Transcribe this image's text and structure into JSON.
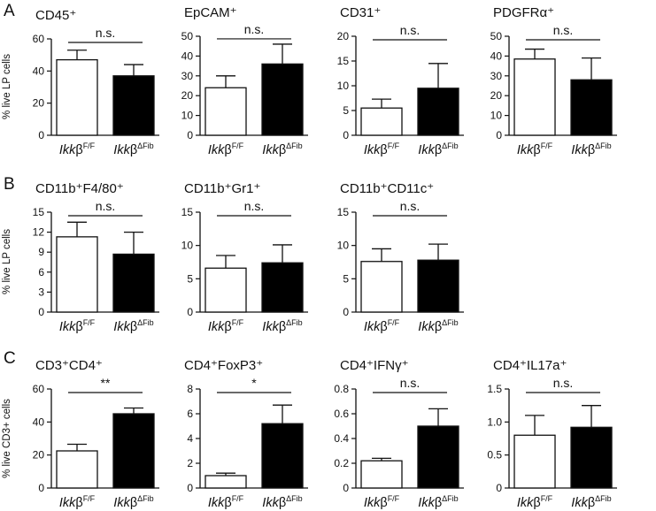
{
  "panels": [
    {
      "letter": "A",
      "ylabel": "% live LP cells"
    },
    {
      "letter": "B",
      "ylabel": "% live LP cells"
    },
    {
      "letter": "C",
      "ylabel": "% live CD3+ cells"
    }
  ],
  "colors": {
    "control_fill": "#ffffff",
    "knockout_fill": "#000000",
    "axis": "#111111"
  },
  "chart_data": [
    {
      "type": "bar",
      "panel": "A",
      "title": "CD45⁺",
      "categories": [
        "Ikkβ F/F",
        "Ikkβ ΔFib"
      ],
      "category_labels": [
        {
          "base": "Ikk",
          "greek": "β",
          "sup": "F/F"
        },
        {
          "base": "Ikk",
          "greek": "β",
          "sup": "ΔFib"
        }
      ],
      "values": [
        47,
        37
      ],
      "errors": [
        6,
        7
      ],
      "ylim": [
        0,
        60
      ],
      "yticks": [
        0,
        20,
        40,
        60
      ],
      "ylabel": "% live LP cells",
      "significance": "n.s."
    },
    {
      "type": "bar",
      "panel": "A",
      "title": "EpCAM⁺",
      "categories": [
        "Ikkβ F/F",
        "Ikkβ ΔFib"
      ],
      "category_labels": [
        {
          "base": "Ikk",
          "greek": "β",
          "sup": "F/F"
        },
        {
          "base": "Ikk",
          "greek": "β",
          "sup": "ΔFib"
        }
      ],
      "values": [
        24,
        36
      ],
      "errors": [
        6,
        10
      ],
      "ylim": [
        0,
        50
      ],
      "yticks": [
        0,
        10,
        20,
        30,
        40,
        50
      ],
      "ylabel": "",
      "significance": "n.s."
    },
    {
      "type": "bar",
      "panel": "A",
      "title": "CD31⁺",
      "categories": [
        "Ikkβ F/F",
        "Ikkβ ΔFib"
      ],
      "category_labels": [
        {
          "base": "Ikk",
          "greek": "β",
          "sup": "F/F"
        },
        {
          "base": "Ikk",
          "greek": "β",
          "sup": "ΔFib"
        }
      ],
      "values": [
        5.5,
        9.5
      ],
      "errors": [
        1.8,
        5
      ],
      "ylim": [
        0,
        20
      ],
      "yticks": [
        0,
        5,
        10,
        15,
        20
      ],
      "ylabel": "",
      "significance": "n.s."
    },
    {
      "type": "bar",
      "panel": "A",
      "title": "PDGFRα⁺",
      "categories": [
        "Ikkβ F/F",
        "Ikkβ ΔFib"
      ],
      "category_labels": [
        {
          "base": "Ikk",
          "greek": "β",
          "sup": "F/F"
        },
        {
          "base": "Ikk",
          "greek": "β",
          "sup": "ΔFib"
        }
      ],
      "values": [
        38.5,
        28
      ],
      "errors": [
        5,
        11
      ],
      "ylim": [
        0,
        50
      ],
      "yticks": [
        0,
        10,
        20,
        30,
        40,
        50
      ],
      "ylabel": "",
      "significance": "n.s."
    },
    {
      "type": "bar",
      "panel": "B",
      "title": "CD11b⁺F4/80⁺",
      "categories": [
        "Ikkβ F/F",
        "Ikkβ ΔFib"
      ],
      "category_labels": [
        {
          "base": "Ikk",
          "greek": "β",
          "sup": "F/F"
        },
        {
          "base": "Ikk",
          "greek": "β",
          "sup": "ΔFib"
        }
      ],
      "values": [
        11.3,
        8.7
      ],
      "errors": [
        2.2,
        3.3
      ],
      "ylim": [
        0,
        15
      ],
      "yticks": [
        0,
        3,
        6,
        9,
        12,
        15
      ],
      "ylabel": "% live LP cells",
      "significance": "n.s."
    },
    {
      "type": "bar",
      "panel": "B",
      "title": "CD11b⁺Gr1⁺",
      "categories": [
        "Ikkβ F/F",
        "Ikkβ ΔFib"
      ],
      "category_labels": [
        {
          "base": "Ikk",
          "greek": "β",
          "sup": "F/F"
        },
        {
          "base": "Ikk",
          "greek": "β",
          "sup": "ΔFib"
        }
      ],
      "values": [
        6.6,
        7.4
      ],
      "errors": [
        1.9,
        2.7
      ],
      "ylim": [
        0,
        15
      ],
      "yticks": [
        0,
        5,
        10,
        15
      ],
      "ylabel": "",
      "significance": "n.s."
    },
    {
      "type": "bar",
      "panel": "B",
      "title": "CD11b⁺CD11c⁺",
      "categories": [
        "Ikkβ F/F",
        "Ikkβ ΔFib"
      ],
      "category_labels": [
        {
          "base": "Ikk",
          "greek": "β",
          "sup": "F/F"
        },
        {
          "base": "Ikk",
          "greek": "β",
          "sup": "ΔFib"
        }
      ],
      "values": [
        7.6,
        7.8
      ],
      "errors": [
        1.9,
        2.4
      ],
      "ylim": [
        0,
        15
      ],
      "yticks": [
        0,
        5,
        10,
        15
      ],
      "ylabel": "",
      "significance": "n.s."
    },
    {
      "type": "bar",
      "panel": "C",
      "title": "CD3⁺CD4⁺",
      "categories": [
        "Ikkβ F/F",
        "Ikkβ ΔFib"
      ],
      "category_labels": [
        {
          "base": "Ikk",
          "greek": "β",
          "sup": "F/F"
        },
        {
          "base": "Ikk",
          "greek": "β",
          "sup": "ΔFib"
        }
      ],
      "values": [
        22.5,
        45
      ],
      "errors": [
        4,
        3.5
      ],
      "ylim": [
        0,
        60
      ],
      "yticks": [
        0,
        20,
        40,
        60
      ],
      "ylabel": "% live CD3+ cells",
      "significance": "**"
    },
    {
      "type": "bar",
      "panel": "C",
      "title": "CD4⁺FoxP3⁺",
      "categories": [
        "Ikkβ F/F",
        "Ikkβ ΔFib"
      ],
      "category_labels": [
        {
          "base": "Ikk",
          "greek": "β",
          "sup": "F/F"
        },
        {
          "base": "Ikk",
          "greek": "β",
          "sup": "ΔFib"
        }
      ],
      "values": [
        1.0,
        5.2
      ],
      "errors": [
        0.2,
        1.5
      ],
      "ylim": [
        0,
        8
      ],
      "yticks": [
        0,
        2,
        4,
        6,
        8
      ],
      "ylabel": "",
      "significance": "*"
    },
    {
      "type": "bar",
      "panel": "C",
      "title": "CD4⁺IFNγ⁺",
      "categories": [
        "Ikkβ F/F",
        "Ikkβ ΔFib"
      ],
      "category_labels": [
        {
          "base": "Ikk",
          "greek": "β",
          "sup": "F/F"
        },
        {
          "base": "Ikk",
          "greek": "β",
          "sup": "ΔFib"
        }
      ],
      "values": [
        0.22,
        0.5
      ],
      "errors": [
        0.02,
        0.14
      ],
      "ylim": [
        0,
        0.8
      ],
      "yticks": [
        0,
        0.2,
        0.4,
        0.6,
        0.8
      ],
      "ytick_labels": [
        "0",
        "0.2",
        "0.4",
        "0.6",
        "0.8"
      ],
      "ylabel": "",
      "significance": "n.s."
    },
    {
      "type": "bar",
      "panel": "C",
      "title": "CD4⁺IL17a⁺",
      "categories": [
        "Ikkβ F/F",
        "Ikkβ ΔFib"
      ],
      "category_labels": [
        {
          "base": "Ikk",
          "greek": "β",
          "sup": "F/F"
        },
        {
          "base": "Ikk",
          "greek": "β",
          "sup": "ΔFib"
        }
      ],
      "values": [
        0.8,
        0.92
      ],
      "errors": [
        0.3,
        0.33
      ],
      "ylim": [
        0,
        1.5
      ],
      "yticks": [
        0,
        0.5,
        1.0,
        1.5
      ],
      "ytick_labels": [
        "0",
        "0.5",
        "1.0",
        "1.5"
      ],
      "ylabel": "",
      "significance": "n.s."
    }
  ]
}
